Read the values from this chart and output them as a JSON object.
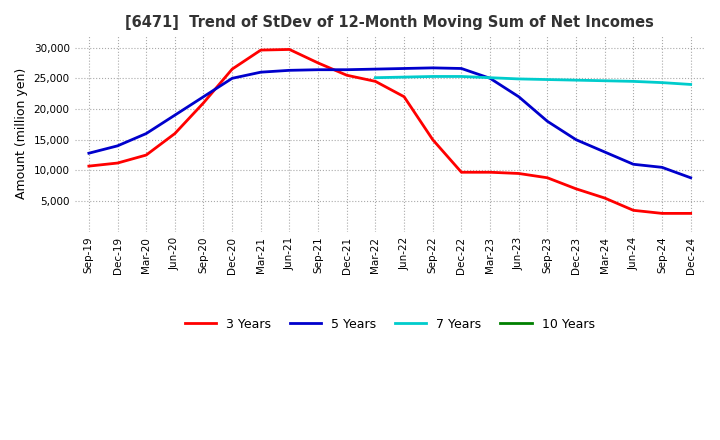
{
  "title": "[6471]  Trend of StDev of 12-Month Moving Sum of Net Incomes",
  "ylabel": "Amount (million yen)",
  "ylim": [
    0,
    32000
  ],
  "yticks": [
    5000,
    10000,
    15000,
    20000,
    25000,
    30000
  ],
  "x_labels": [
    "Sep-19",
    "Dec-19",
    "Mar-20",
    "Jun-20",
    "Sep-20",
    "Dec-20",
    "Mar-21",
    "Jun-21",
    "Sep-21",
    "Dec-21",
    "Mar-22",
    "Jun-22",
    "Sep-22",
    "Dec-22",
    "Mar-23",
    "Jun-23",
    "Sep-23",
    "Dec-23",
    "Mar-24",
    "Jun-24",
    "Sep-24",
    "Dec-24"
  ],
  "series": {
    "3 Years": {
      "color": "#FF0000",
      "linewidth": 2.0,
      "values": [
        10700,
        11200,
        12500,
        16000,
        21000,
        26500,
        29600,
        29700,
        27500,
        25500,
        24500,
        22000,
        15000,
        9700,
        9700,
        9500,
        8800,
        7000,
        5500,
        3500,
        3000,
        3000
      ]
    },
    "5 Years": {
      "color": "#0000CC",
      "linewidth": 2.0,
      "values": [
        12800,
        14000,
        16000,
        19000,
        22000,
        25000,
        26000,
        26300,
        26400,
        26400,
        26500,
        26600,
        26700,
        26600,
        25000,
        22000,
        18000,
        15000,
        13000,
        11000,
        10500,
        8800
      ]
    },
    "7 Years": {
      "color": "#00CCCC",
      "linewidth": 2.0,
      "values": [
        null,
        null,
        null,
        null,
        null,
        null,
        null,
        null,
        null,
        null,
        25100,
        25200,
        25300,
        25300,
        25100,
        24900,
        24800,
        24700,
        24600,
        24500,
        24300,
        24000
      ]
    },
    "10 Years": {
      "color": "#008000",
      "linewidth": 2.0,
      "values": [
        null,
        null,
        null,
        null,
        null,
        null,
        null,
        null,
        null,
        null,
        null,
        null,
        null,
        null,
        null,
        null,
        null,
        null,
        null,
        null,
        null,
        null
      ]
    }
  },
  "legend_order": [
    "3 Years",
    "5 Years",
    "7 Years",
    "10 Years"
  ],
  "background_color": "#FFFFFF",
  "grid_color": "#AAAAAA"
}
